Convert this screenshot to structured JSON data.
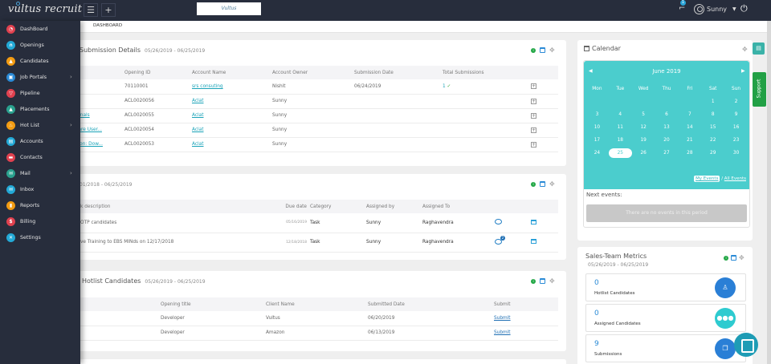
{
  "header": {
    "brand": "vultus recruit",
    "menu_icon": "hamburger-icon",
    "add_icon": "plus-icon",
    "company_logo_text": "Vultus",
    "notification_count": "1",
    "user_name": "Sunny",
    "power_icon": "power-icon"
  },
  "breadcrumb": "DASHBOARD",
  "sidebar": {
    "items": [
      {
        "label": "DashBoard",
        "icon": "dashboard-icon",
        "color": "#e0414f",
        "has_children": false
      },
      {
        "label": "Openings",
        "icon": "headset-icon",
        "color": "#23a9d6",
        "has_children": false
      },
      {
        "label": "Candidates",
        "icon": "candidates-icon",
        "color": "#f39c12",
        "has_children": false
      },
      {
        "label": "Job Portals",
        "icon": "briefcase-icon",
        "color": "#2a8ad6",
        "has_children": true
      },
      {
        "label": "Pipeline",
        "icon": "funnel-icon",
        "color": "#e0414f",
        "has_children": false
      },
      {
        "label": "Placements",
        "icon": "rocket-icon",
        "color": "#2aa18e",
        "has_children": false
      },
      {
        "label": "Hot List",
        "icon": "fire-icon",
        "color": "#f39c12",
        "has_children": true
      },
      {
        "label": "Accounts",
        "icon": "accounts-icon",
        "color": "#23a9d6",
        "has_children": false
      },
      {
        "label": "Contacts",
        "icon": "contacts-icon",
        "color": "#e0414f",
        "has_children": false
      },
      {
        "label": "Mail",
        "icon": "mail-icon",
        "color": "#2aa18e",
        "has_children": true
      },
      {
        "label": "Inbox",
        "icon": "inbox-icon",
        "color": "#23a9d6",
        "has_children": false
      },
      {
        "label": "Reports",
        "icon": "reports-icon",
        "color": "#f39c12",
        "has_children": false
      },
      {
        "label": "Billing",
        "icon": "dollar-icon",
        "color": "#e0414f",
        "has_children": false
      },
      {
        "label": "Settings",
        "icon": "settings-icon",
        "color": "#23a9d6",
        "has_children": false
      }
    ]
  },
  "submission_details": {
    "title": "Submission Details",
    "range": "05/26/2019 - 06/25/2019",
    "columns": [
      "",
      "Opening ID",
      "Account Name",
      "Account Owner",
      "Submission Date",
      "Total Submissions",
      ""
    ],
    "rows": [
      {
        "title": "",
        "opening_id": "70110001",
        "account": "srs consuting",
        "owner": "Nishit",
        "date": "06/24/2019",
        "total": "1"
      },
      {
        "title": "",
        "opening_id": "ACL0020056",
        "account": "Aclat",
        "owner": "Sunny",
        "date": "",
        "total": ""
      },
      {
        "title": "essionals",
        "opening_id": "ACL0020055",
        "account": "Aclat",
        "owner": "Sunny",
        "date": "",
        "total": ""
      },
      {
        "title": "oftware User...",
        "opening_id": "ACL0020054",
        "account": "Aclat",
        "owner": "Sunny",
        "date": "",
        "total": ""
      },
      {
        "title": "ocation: Dow...",
        "opening_id": "ACL0020053",
        "account": "Aclat",
        "owner": "Sunny",
        "date": "",
        "total": ""
      }
    ]
  },
  "tasks": {
    "range": "01/2018 - 06/25/2019",
    "columns": [
      "k description",
      "Due date",
      "Category",
      "Assigned by",
      "Assigned To",
      "",
      ""
    ],
    "rows": [
      {
        "description": "OTP candidates",
        "due": "05/16/2019",
        "category": "Task",
        "by": "Sunny",
        "to": "Raghavendra",
        "comments": ""
      },
      {
        "description": "ve Training to EBS MINds on 12/17/2018",
        "due": "12/18/2018",
        "category": "Task",
        "by": "Sunny",
        "to": "Raghavendra",
        "comments": "2"
      }
    ]
  },
  "hotlist": {
    "title": "Hotlist Candidates",
    "range": "05/26/2019 - 06/25/2019",
    "columns": [
      "",
      "Opening title",
      "Client Name",
      "Submitted Date",
      "Submit"
    ],
    "rows": [
      {
        "opening": "Developer",
        "client": "Vultus",
        "date": "06/20/2019",
        "action": "Submit"
      },
      {
        "opening": "Developer",
        "client": "Amazon",
        "date": "06/13/2019",
        "action": "Submit"
      }
    ]
  },
  "calendar": {
    "title": "Calendar",
    "month": "June 2019",
    "weekdays": [
      "Mon",
      "Tue",
      "Wed",
      "Thu",
      "Fri",
      "Sat",
      "Sun"
    ],
    "days": [
      "",
      "",
      "",
      "",
      "",
      "1",
      "2",
      "3",
      "4",
      "5",
      "6",
      "7",
      "8",
      "9",
      "10",
      "11",
      "12",
      "13",
      "14",
      "15",
      "16",
      "17",
      "18",
      "19",
      "20",
      "21",
      "22",
      "23",
      "24",
      "25",
      "26",
      "27",
      "28",
      "29",
      "30"
    ],
    "today": "25",
    "my_events": "My Events",
    "separator": "/",
    "all_events": "All Events",
    "next_events_label": "Next events:",
    "no_events": "There are no events in this period"
  },
  "metrics": {
    "title": "Sales-Team Metrics",
    "range": "05/26/2019 - 06/25/2019",
    "items": [
      {
        "value": "0",
        "label": "Hotlist Candidates",
        "icon": "user-icon",
        "color": "#2a7fd6"
      },
      {
        "value": "0",
        "label": "Assigned Candidates",
        "icon": "group-icon",
        "color": "#2ecbd0"
      },
      {
        "value": "9",
        "label": "Submissions",
        "icon": "copy-icon",
        "color": "#2a7fd6"
      }
    ]
  },
  "support_label": "Support",
  "colors": {
    "topbar": "#272d3c",
    "teal": "#4bcdcd",
    "link": "#1aa3b8",
    "support": "#22a045"
  }
}
